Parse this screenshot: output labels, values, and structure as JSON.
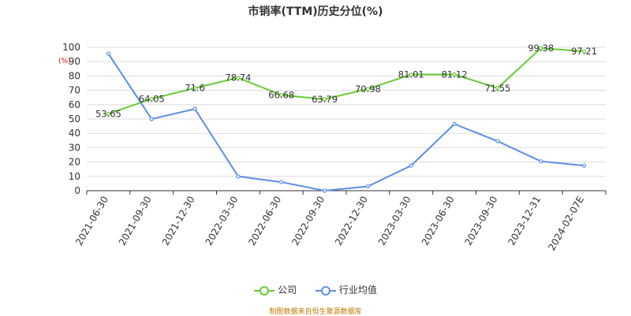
{
  "chart_data": {
    "type": "line",
    "title": "市销率(TTM)历史分位(%)",
    "ylabel_unit": "(%)",
    "categories": [
      "2021-06-30",
      "2021-09-30",
      "2021-12-30",
      "2022-03-30",
      "2022-06-30",
      "2022-09-30",
      "2022-12-30",
      "2023-03-30",
      "2023-06-30",
      "2023-09-30",
      "2023-12-31",
      "2024-02-07E"
    ],
    "ylim": [
      0,
      100
    ],
    "yticks": [
      0,
      10,
      20,
      30,
      40,
      50,
      60,
      70,
      80,
      90,
      100
    ],
    "grid": true,
    "legend_position": "bottom",
    "series": [
      {
        "name": "公司",
        "color": "#66cc33",
        "values": [
          53.65,
          64.05,
          71.6,
          78.74,
          66.68,
          63.79,
          70.98,
          81.01,
          81.12,
          71.55,
          99.38,
          97.21
        ],
        "labels": [
          "53.65",
          "64.05",
          "71.6",
          "78.74",
          "66.68",
          "63.79",
          "70.98",
          "81.01",
          "81.12",
          "71.55",
          "99.38",
          "97.21"
        ]
      },
      {
        "name": "行业均值",
        "color": "#5b8ee6",
        "values": [
          95.5,
          50,
          57,
          10,
          6,
          0,
          3,
          17.5,
          46.5,
          34.5,
          20.5,
          17.5
        ]
      }
    ]
  },
  "footer": {
    "source": "制图数据来自恒生聚源数据库"
  }
}
